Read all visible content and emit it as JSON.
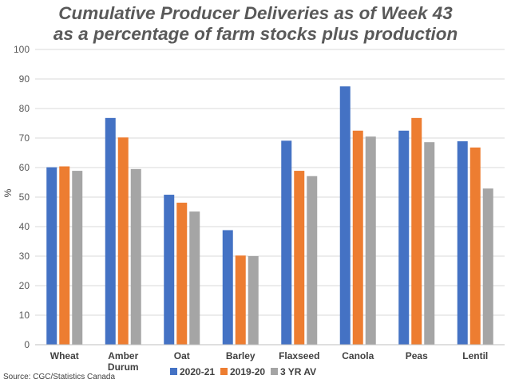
{
  "chart_data": {
    "type": "bar",
    "title_lines": [
      "Cumulative Producer Deliveries as of Week 43",
      "as a percentage of farm stocks plus production"
    ],
    "ylabel": "%",
    "ylim": [
      0,
      100
    ],
    "yticks": [
      0,
      10,
      20,
      30,
      40,
      50,
      60,
      70,
      80,
      90,
      100
    ],
    "categories": [
      [
        "Wheat"
      ],
      [
        "Amber",
        "Durum"
      ],
      [
        "Oat"
      ],
      [
        "Barley"
      ],
      [
        "Flaxseed"
      ],
      [
        "Canola"
      ],
      [
        "Peas"
      ],
      [
        "Lentil"
      ]
    ],
    "series": [
      {
        "name": "2020-21",
        "color": "#4472c4",
        "values": [
          60.1,
          76.8,
          50.8,
          38.8,
          69.1,
          87.5,
          72.5,
          68.9
        ]
      },
      {
        "name": "2019-20",
        "color": "#ed7d31",
        "values": [
          60.4,
          70.2,
          48.1,
          30.2,
          58.9,
          72.5,
          76.8,
          66.8
        ]
      },
      {
        "name": "3 YR AV",
        "color": "#a5a5a5",
        "values": [
          58.9,
          59.5,
          45.1,
          30.0,
          57.1,
          70.5,
          68.6,
          52.9
        ]
      }
    ],
    "grid": true,
    "legend_position": "bottom"
  },
  "source": "Source: CGC/Statistics Canada"
}
